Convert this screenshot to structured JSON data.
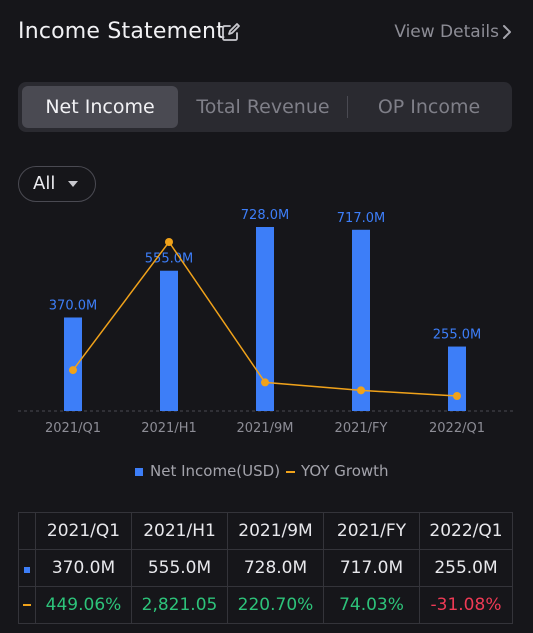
{
  "header": {
    "title": "Income Statement",
    "view_details": "View Details"
  },
  "tabs": [
    {
      "label": "Net Income",
      "active": true
    },
    {
      "label": "Total Revenue",
      "active": false
    },
    {
      "label": "OP Income",
      "active": false
    }
  ],
  "filter": {
    "label": "All"
  },
  "colors": {
    "bar": "#3d7ef8",
    "line": "#f0a21a",
    "positive": "#2dc37a",
    "negative": "#ee3a55"
  },
  "chart_data": {
    "type": "bar",
    "categories": [
      "2021/Q1",
      "2021/H1",
      "2021/9M",
      "2021/FY",
      "2022/Q1"
    ],
    "series": [
      {
        "name": "Net Income(USD)",
        "type": "bar",
        "values": [
          370.0,
          555.0,
          728.0,
          717.0,
          255.0
        ],
        "labels": [
          "370.0M",
          "555.0M",
          "728.0M",
          "717.0M",
          "255.0M"
        ]
      },
      {
        "name": "YOY Growth",
        "type": "line",
        "values": [
          449.06,
          2821.05,
          220.7,
          74.03,
          -31.08
        ]
      }
    ],
    "ylim_bar": [
      0,
      728
    ],
    "ylim_line": [
      -31.08,
      2821.05
    ],
    "grid": false,
    "legend_position": "bottom"
  },
  "legend": {
    "bar_label": "Net Income(USD)",
    "line_label": "YOY Growth"
  },
  "table": {
    "headers": [
      "2021/Q1",
      "2021/H1",
      "2021/9M",
      "2021/FY",
      "2022/Q1"
    ],
    "net_income": [
      "370.0M",
      "555.0M",
      "728.0M",
      "717.0M",
      "255.0M"
    ],
    "yoy": [
      "449.06%",
      "2,821.05",
      "220.70%",
      "74.03%",
      "-31.08%"
    ]
  }
}
